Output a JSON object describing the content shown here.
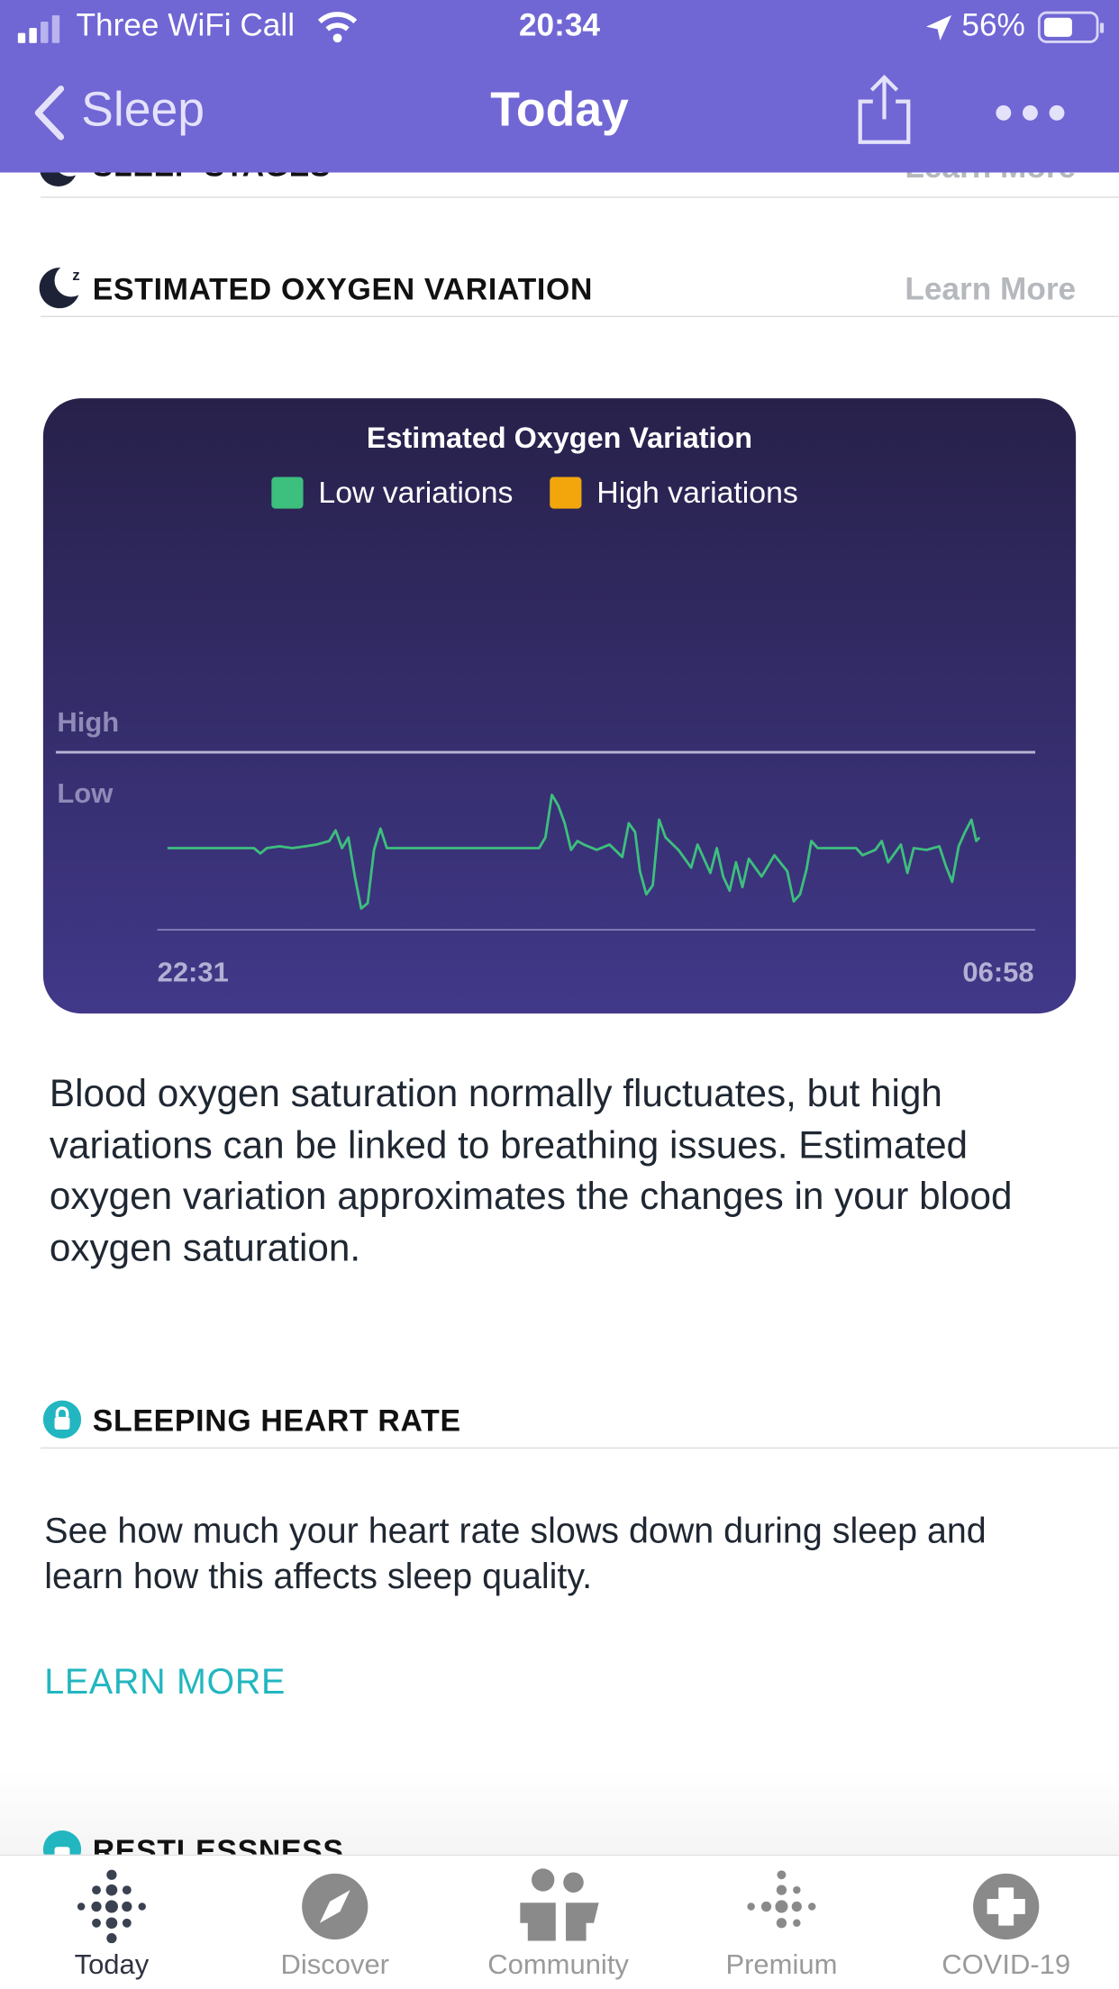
{
  "status": {
    "carrier": "Three WiFi Call",
    "time": "20:34",
    "battery": "56%"
  },
  "nav": {
    "back": "Sleep",
    "title": "Today"
  },
  "previous_section": {
    "header": "SLEEP STAGES",
    "link": "Learn More"
  },
  "oxygen": {
    "header": "ESTIMATED OXYGEN VARIATION",
    "link": "Learn More",
    "description": "Blood oxygen saturation normally fluctuates, but high variations can be linked to breathing issues. Estimated oxygen variation approximates the changes in your blood oxygen saturation."
  },
  "chart_data": {
    "type": "line",
    "title": "Estimated Oxygen Variation",
    "x": [
      0,
      54,
      58,
      62,
      70,
      78,
      86,
      93,
      101,
      105,
      109,
      113,
      117,
      121,
      125,
      129,
      133,
      137,
      232,
      236,
      240,
      244,
      248,
      252,
      256,
      260,
      268,
      276,
      284,
      288,
      292,
      295,
      299,
      303,
      307,
      311,
      319,
      327,
      331,
      339,
      343,
      347,
      351,
      355,
      359,
      363,
      371,
      379,
      387,
      391,
      395,
      399,
      402,
      406,
      430,
      434,
      442,
      446,
      450,
      458,
      462,
      466,
      474,
      482,
      486,
      490,
      494,
      498,
      502,
      505,
      507
    ],
    "series": [
      {
        "name": "Low variations",
        "color": "#3dbf7e",
        "values": [
          4.6,
          4.6,
          4.3,
          4.6,
          4.7,
          4.6,
          4.7,
          4.8,
          5.0,
          5.6,
          4.6,
          5.2,
          3.0,
          1.2,
          1.5,
          4.5,
          5.7,
          4.6,
          4.6,
          5.2,
          7.6,
          7.0,
          6.0,
          4.5,
          5.0,
          4.8,
          4.5,
          4.8,
          4.1,
          6.0,
          5.5,
          3.3,
          2.0,
          2.5,
          6.2,
          5.2,
          4.5,
          3.5,
          4.8,
          3.2,
          4.6,
          3.0,
          2.2,
          3.8,
          2.4,
          4.0,
          3.0,
          4.2,
          3.3,
          1.6,
          2.0,
          3.4,
          5.0,
          4.6,
          4.6,
          4.2,
          4.5,
          5.0,
          3.8,
          4.8,
          3.2,
          4.6,
          4.5,
          4.7,
          3.6,
          2.7,
          4.7,
          5.5,
          6.2,
          5.0,
          5.2
        ]
      },
      {
        "name": "High variations",
        "color": "#f2a60c",
        "values": [
          null,
          null,
          null,
          null,
          null,
          null,
          null,
          null,
          null,
          null,
          null,
          null,
          null,
          null,
          null,
          null,
          null,
          null,
          null,
          null,
          null,
          null,
          null,
          null,
          null,
          null,
          null,
          null,
          null,
          null,
          null,
          null,
          null,
          null,
          null,
          null,
          null,
          null,
          null,
          null,
          null,
          null,
          null,
          null,
          null,
          null,
          null,
          null,
          null,
          null,
          null,
          null,
          null,
          null,
          null,
          null,
          null,
          null,
          null,
          null,
          null,
          null,
          null,
          null,
          null,
          null,
          null,
          null,
          null,
          null,
          null
        ]
      }
    ],
    "xlim": [
      0,
      507
    ],
    "xticks": [
      {
        "value": 0,
        "label": "22:31"
      },
      {
        "value": 507,
        "label": "06:58"
      }
    ],
    "ylim": [
      0,
      10
    ],
    "yticks": [
      {
        "value": 10,
        "label": "High"
      },
      {
        "value": 6,
        "label": "Low"
      }
    ]
  },
  "heart_rate": {
    "header": "SLEEPING HEART RATE",
    "description": "See how much your heart rate slows down during sleep and learn how this affects sleep quality.",
    "link": "LEARN MORE"
  },
  "next_section": {
    "header": "RESTLESSNESS"
  },
  "tabs": [
    "Today",
    "Discover",
    "Community",
    "Premium",
    "COVID-19"
  ]
}
